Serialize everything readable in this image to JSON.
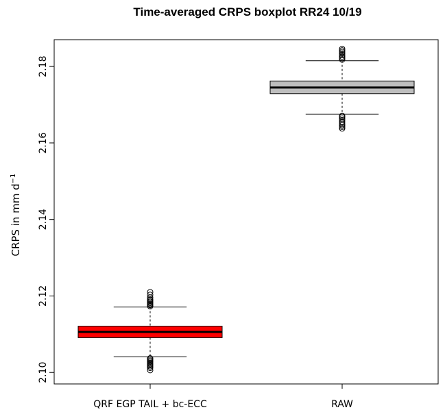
{
  "chart_data": {
    "type": "boxplot",
    "title": "Time-averaged CRPS boxplot RR24 10/19",
    "ylabel_main": "CRPS in mm d",
    "ylabel_sup": "−1",
    "xlabel": "",
    "ylim": [
      2.097,
      2.187
    ],
    "yticks": [
      2.1,
      2.12,
      2.14,
      2.16,
      2.18
    ],
    "ytick_labels": [
      "2.10",
      "2.12",
      "2.14",
      "2.16",
      "2.18"
    ],
    "grid": false,
    "categories": [
      "QRF EGP TAIL + bc-ECC",
      "RAW"
    ],
    "boxes": [
      {
        "label": "QRF EGP TAIL + bc-ECC",
        "color": "#ff0000",
        "whisker_low": 2.1041,
        "q1": 2.1091,
        "median": 2.1106,
        "q3": 2.1121,
        "whisker_high": 2.1171,
        "outliers": [
          2.1006,
          2.1012,
          2.1016,
          2.1019,
          2.1022,
          2.1025,
          2.1028,
          2.1031,
          2.1034,
          2.1037,
          2.1173,
          2.1176,
          2.1179,
          2.1182,
          2.1185,
          2.1188,
          2.1191,
          2.1196,
          2.1203,
          2.121
        ]
      },
      {
        "label": "RAW",
        "color": "#bebebe",
        "whisker_low": 2.1675,
        "q1": 2.1729,
        "median": 2.1745,
        "q3": 2.1762,
        "whisker_high": 2.1815,
        "outliers": [
          2.1638,
          2.1642,
          2.1646,
          2.165,
          2.1655,
          2.166,
          2.1664,
          2.1668,
          2.1671,
          2.1818,
          2.1822,
          2.1826,
          2.183,
          2.1834,
          2.1838,
          2.1842,
          2.1846
        ]
      }
    ]
  }
}
